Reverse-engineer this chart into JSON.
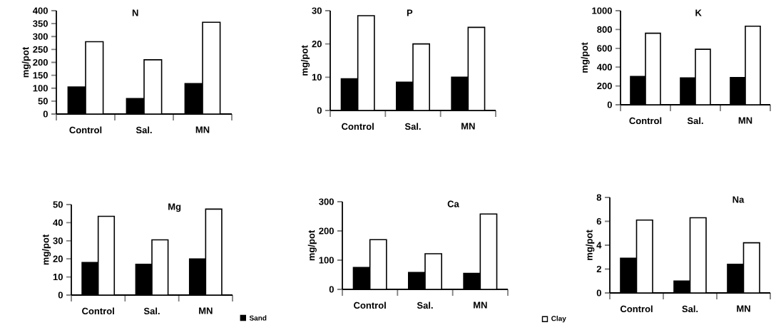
{
  "chart_data": [
    {
      "type": "bar",
      "title": "N",
      "ylabel": "mg/pot",
      "categories": [
        "Control",
        "Sal.",
        "MN"
      ],
      "series": [
        {
          "color": "#000000",
          "values": [
            105,
            60,
            118
          ]
        },
        {
          "color": "#ffffff",
          "values": [
            280,
            210,
            355
          ]
        }
      ],
      "ylim": [
        0,
        400
      ],
      "yticks": [
        0,
        50,
        100,
        150,
        200,
        250,
        300,
        350,
        400
      ]
    },
    {
      "type": "bar",
      "title": "P",
      "ylabel": "mg/pot",
      "categories": [
        "Control",
        "Sal.",
        "MN"
      ],
      "series": [
        {
          "color": "#000000",
          "values": [
            9.5,
            8.5,
            10
          ]
        },
        {
          "color": "#ffffff",
          "values": [
            28.5,
            20,
            25
          ]
        }
      ],
      "ylim": [
        0,
        30
      ],
      "yticks": [
        0,
        10,
        20,
        30
      ]
    },
    {
      "type": "bar",
      "title": "K",
      "ylabel": "mg/pot",
      "categories": [
        "Control",
        "Sal.",
        "MN"
      ],
      "series": [
        {
          "color": "#000000",
          "values": [
            300,
            285,
            290
          ]
        },
        {
          "color": "#ffffff",
          "values": [
            760,
            590,
            835
          ]
        }
      ],
      "ylim": [
        0,
        1000
      ],
      "yticks": [
        0,
        200,
        400,
        600,
        800,
        1000
      ]
    },
    {
      "type": "bar",
      "title": "Mg",
      "ylabel": "mg/pot",
      "categories": [
        "Control",
        "Sal.",
        "MN"
      ],
      "series": [
        {
          "name": "Sand",
          "color": "#000000",
          "values": [
            18,
            17,
            20
          ]
        },
        {
          "color": "#ffffff",
          "values": [
            43.5,
            30.5,
            47.5
          ]
        }
      ],
      "ylim": [
        0,
        50
      ],
      "yticks": [
        0,
        10,
        20,
        30,
        40,
        50
      ],
      "legend": "bottom right"
    },
    {
      "type": "bar",
      "title": "Ca",
      "ylabel": "mg/pot",
      "categories": [
        "Control",
        "Sal.",
        "MN"
      ],
      "series": [
        {
          "color": "#000000",
          "values": [
            75,
            58,
            55
          ]
        },
        {
          "color": "#ffffff",
          "values": [
            170,
            122,
            258
          ]
        }
      ],
      "ylim": [
        0,
        300
      ],
      "yticks": [
        0,
        100,
        200,
        300
      ]
    },
    {
      "type": "bar",
      "title": "Na",
      "ylabel": "mg/pot",
      "categories": [
        "Control",
        "Sal.",
        "MN"
      ],
      "series": [
        {
          "color": "#000000",
          "values": [
            2.9,
            1.0,
            2.4
          ]
        },
        {
          "name": "Clay",
          "color": "#ffffff",
          "values": [
            6.1,
            6.3,
            4.2
          ]
        }
      ],
      "ylim": [
        0,
        8
      ],
      "yticks": [
        0,
        2,
        4,
        6,
        8
      ],
      "legend": "bottom left"
    }
  ]
}
